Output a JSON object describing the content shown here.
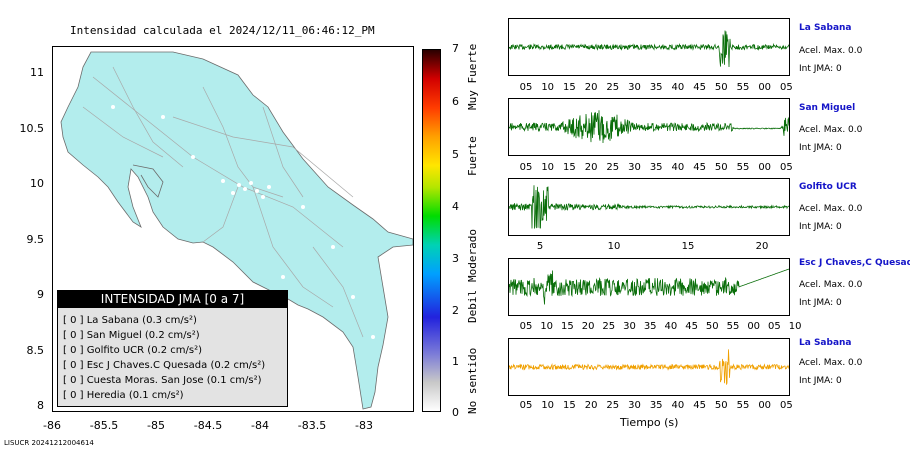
{
  "map": {
    "title": "Intensidad calculada el 2024/12/11_06:46:12_PM",
    "y_ticks": [
      "11",
      "10.5",
      "10",
      "9.5",
      "9",
      "8.5",
      "8"
    ],
    "x_ticks": [
      "-86",
      "-85.5",
      "-85",
      "-84.5",
      "-84",
      "-83.5",
      "-83"
    ],
    "land_color": "#b3eded",
    "legend": {
      "header": "INTENSIDAD JMA [0 a 7]",
      "items": [
        {
          "text": "[ 0 ]  La Sabana (0.3 cm/s²)"
        },
        {
          "text": "[ 0 ]  San Miguel (0.2 cm/s²)"
        },
        {
          "text": "[ 0 ]  Golfito UCR (0.2 cm/s²)"
        },
        {
          "text": "[ 0 ]  Esc J Chaves.C Quesada (0.2 cm/s²)"
        },
        {
          "text": "[ 0 ]  Cuesta Moras. San Jose (0.1 cm/s²)"
        },
        {
          "text": "[ 0 ]  Heredia (0.1 cm/s²)"
        }
      ]
    }
  },
  "colorbar": {
    "ticks": [
      "7",
      "6",
      "5",
      "4",
      "3",
      "2",
      "1",
      "0"
    ],
    "labels": [
      "Muy Fuerte",
      "Fuerte",
      "Moderado",
      "Debil",
      "No sentido"
    ]
  },
  "traces": [
    {
      "name": "La Sabana",
      "accel": "Acel. Max. 0.0",
      "int": "Int JMA: 0",
      "color": "#0a6e0a",
      "ticks": [
        "05",
        "10",
        "15",
        "20",
        "25",
        "30",
        "35",
        "40",
        "45",
        "50",
        "55",
        "00",
        "05"
      ]
    },
    {
      "name": "San Miguel",
      "accel": "Acel. Max. 0.0",
      "int": "Int JMA: 0",
      "color": "#0a6e0a",
      "ticks": [
        "05",
        "10",
        "15",
        "20",
        "25",
        "30",
        "35",
        "40",
        "45",
        "50",
        "55",
        "00",
        "05"
      ]
    },
    {
      "name": "Golfito UCR",
      "accel": "Acel. Max. 0.0",
      "int": "Int JMA: 0",
      "color": "#0a6e0a",
      "ticks": [
        "5",
        "10",
        "15",
        "20"
      ]
    },
    {
      "name": "Esc J Chaves,C Quesad",
      "accel": "Acel. Max. 0.0",
      "int": "Int JMA: 0",
      "color": "#0a6e0a",
      "ticks": [
        "05",
        "10",
        "15",
        "20",
        "25",
        "30",
        "35",
        "40",
        "45",
        "50",
        "55",
        "00",
        "05",
        "10"
      ]
    },
    {
      "name": "La Sabana",
      "accel": "Acel. Max. 0.0",
      "int": "Int JMA: 0",
      "color": "#f0a000",
      "ticks": [
        "05",
        "10",
        "15",
        "20",
        "25",
        "30",
        "35",
        "40",
        "45",
        "50",
        "55",
        "00",
        "05"
      ]
    }
  ],
  "time_label": "Tiempo (s)",
  "footer_id": "LISUCR 20241212004614"
}
